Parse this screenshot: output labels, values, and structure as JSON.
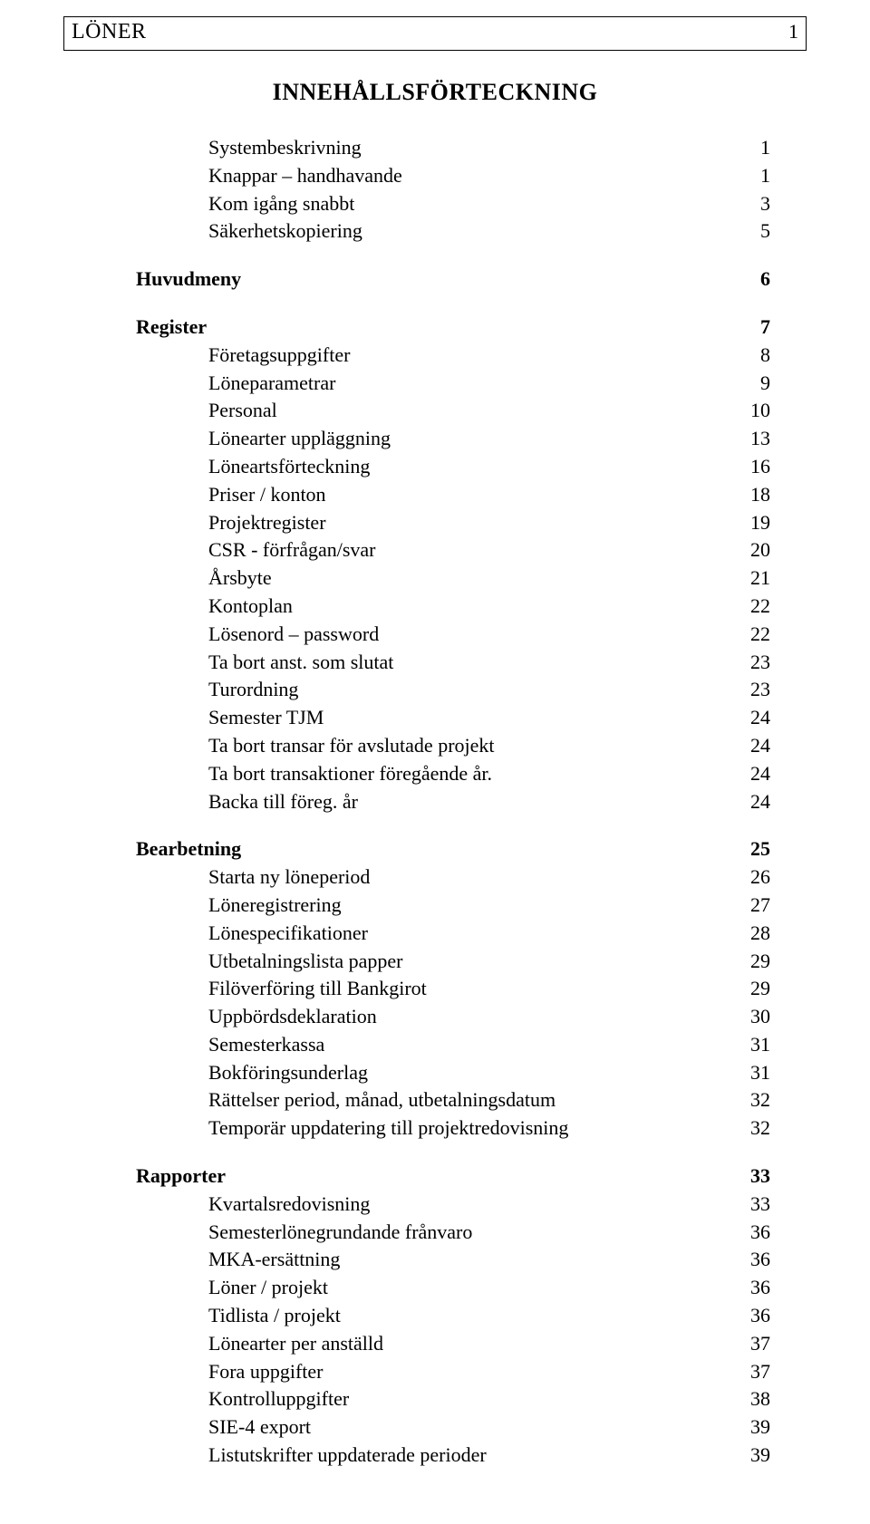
{
  "header": {
    "title": "LÖNER",
    "page": "1"
  },
  "docTitle": "INNEHÅLLSFÖRTECKNING",
  "toc": [
    {
      "label": "Systembeskrivning",
      "page": "1",
      "indent": 1,
      "bold": false
    },
    {
      "label": "Knappar – handhavande",
      "page": "1",
      "indent": 1,
      "bold": false
    },
    {
      "label": "Kom igång snabbt",
      "page": "3",
      "indent": 1,
      "bold": false
    },
    {
      "label": "Säkerhetskopiering",
      "page": "5",
      "indent": 1,
      "bold": false
    },
    {
      "gap": true
    },
    {
      "label": "Huvudmeny",
      "page": "6",
      "indent": 0,
      "bold": true
    },
    {
      "gap": true
    },
    {
      "label": "Register",
      "page": "7",
      "indent": 0,
      "bold": true
    },
    {
      "label": "Företagsuppgifter",
      "page": "8",
      "indent": 1,
      "bold": false
    },
    {
      "label": "Löneparametrar",
      "page": "9",
      "indent": 1,
      "bold": false
    },
    {
      "label": "Personal",
      "page": "10",
      "indent": 1,
      "bold": false
    },
    {
      "label": "Lönearter uppläggning",
      "page": "13",
      "indent": 1,
      "bold": false
    },
    {
      "label": "Löneartsförteckning",
      "page": "16",
      "indent": 1,
      "bold": false
    },
    {
      "label": "Priser / konton",
      "page": "18",
      "indent": 1,
      "bold": false
    },
    {
      "label": "Projektregister",
      "page": "19",
      "indent": 1,
      "bold": false
    },
    {
      "label": "CSR - förfrågan/svar",
      "page": "20",
      "indent": 1,
      "bold": false
    },
    {
      "label": "Årsbyte",
      "page": "21",
      "indent": 1,
      "bold": false
    },
    {
      "label": "Kontoplan",
      "page": "22",
      "indent": 1,
      "bold": false
    },
    {
      "label": "Lösenord – password",
      "page": "22",
      "indent": 1,
      "bold": false
    },
    {
      "label": "Ta bort anst. som slutat",
      "page": "23",
      "indent": 1,
      "bold": false
    },
    {
      "label": "Turordning",
      "page": "23",
      "indent": 1,
      "bold": false
    },
    {
      "label": "Semester TJM",
      "page": "24",
      "indent": 1,
      "bold": false
    },
    {
      "label": "Ta bort transar för avslutade projekt",
      "page": "24",
      "indent": 1,
      "bold": false
    },
    {
      "label": "Ta bort transaktioner föregående år.",
      "page": "24",
      "indent": 1,
      "bold": false
    },
    {
      "label": "Backa till föreg. år",
      "page": "24",
      "indent": 1,
      "bold": false
    },
    {
      "gap": true
    },
    {
      "label": "Bearbetning",
      "page": "25",
      "indent": 0,
      "bold": true
    },
    {
      "label": "Starta ny löneperiod",
      "page": "26",
      "indent": 1,
      "bold": false
    },
    {
      "label": "Löneregistrering",
      "page": "27",
      "indent": 1,
      "bold": false
    },
    {
      "label": "Lönespecifikationer",
      "page": "28",
      "indent": 1,
      "bold": false
    },
    {
      "label": "Utbetalningslista papper",
      "page": "29",
      "indent": 1,
      "bold": false
    },
    {
      "label": "Filöverföring till Bankgirot",
      "page": "29",
      "indent": 1,
      "bold": false
    },
    {
      "label": "Uppbördsdeklaration",
      "page": "30",
      "indent": 1,
      "bold": false
    },
    {
      "label": "Semesterkassa",
      "page": "31",
      "indent": 1,
      "bold": false
    },
    {
      "label": "Bokföringsunderlag",
      "page": "31",
      "indent": 1,
      "bold": false
    },
    {
      "label": "Rättelser period, månad, utbetalningsdatum",
      "page": "32",
      "indent": 1,
      "bold": false
    },
    {
      "label": "Temporär uppdatering till projektredovisning",
      "page": "32",
      "indent": 1,
      "bold": false
    },
    {
      "gap": true
    },
    {
      "label": "Rapporter",
      "page": "33",
      "indent": 0,
      "bold": true
    },
    {
      "label": "Kvartalsredovisning",
      "page": "33",
      "indent": 1,
      "bold": false
    },
    {
      "label": "Semesterlönegrundande frånvaro",
      "page": "36",
      "indent": 1,
      "bold": false
    },
    {
      "label": "MKA-ersättning",
      "page": "36",
      "indent": 1,
      "bold": false
    },
    {
      "label": "Löner / projekt",
      "page": "36",
      "indent": 1,
      "bold": false
    },
    {
      "label": "Tidlista / projekt",
      "page": "36",
      "indent": 1,
      "bold": false
    },
    {
      "label": "Lönearter per anställd",
      "page": "37",
      "indent": 1,
      "bold": false
    },
    {
      "label": "Fora uppgifter",
      "page": "37",
      "indent": 1,
      "bold": false
    },
    {
      "label": "Kontrolluppgifter",
      "page": "38",
      "indent": 1,
      "bold": false
    },
    {
      "label": "SIE-4 export",
      "page": "39",
      "indent": 1,
      "bold": false
    },
    {
      "label": "Listutskrifter uppdaterade perioder",
      "page": "39",
      "indent": 1,
      "bold": false
    }
  ]
}
